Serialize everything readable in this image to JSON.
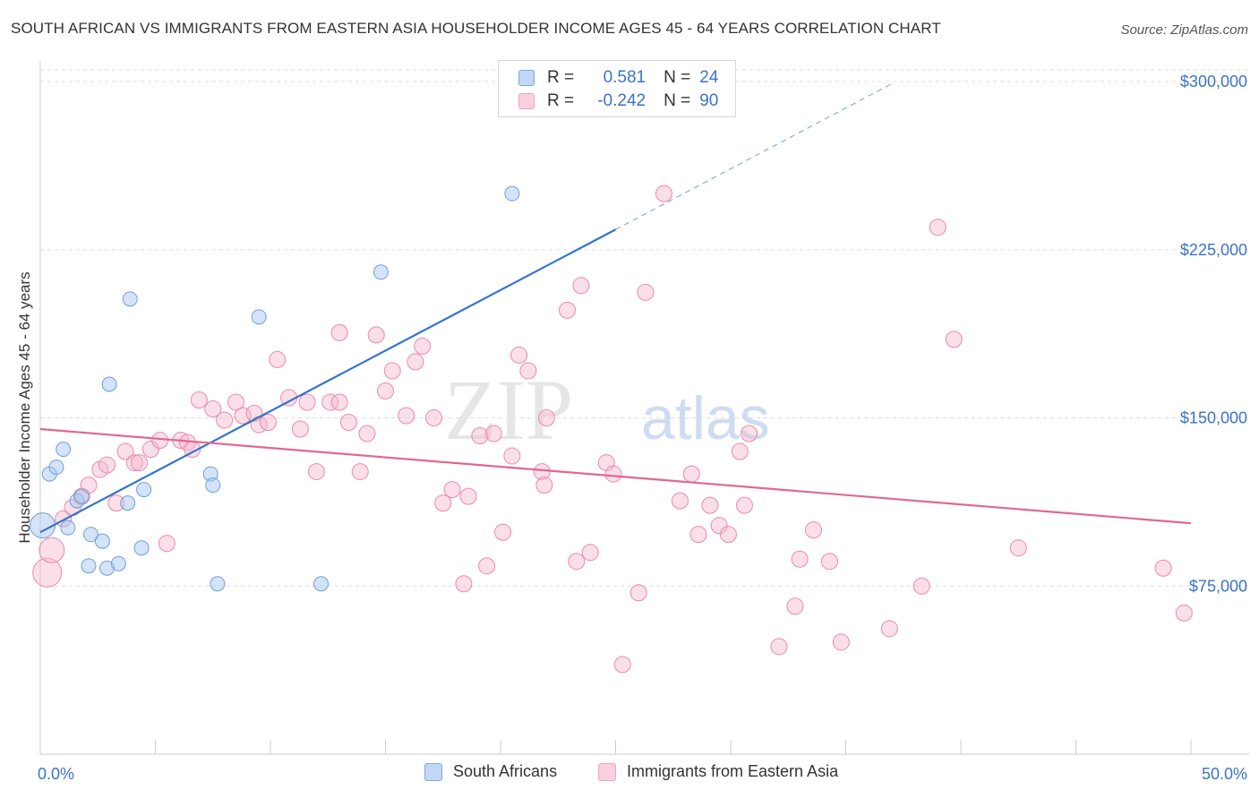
{
  "header": {
    "title": "SOUTH AFRICAN VS IMMIGRANTS FROM EASTERN ASIA HOUSEHOLDER INCOME AGES 45 - 64 YEARS CORRELATION CHART",
    "source": "Source: ZipAtlas.com"
  },
  "legend_top": {
    "rows": [
      {
        "r_label": "R =",
        "r_value": "0.581",
        "n_label": "N =",
        "n_value": "24"
      },
      {
        "r_label": "R =",
        "r_value": "-0.242",
        "n_label": "N =",
        "n_value": "90"
      }
    ]
  },
  "legend_bottom": {
    "items": [
      {
        "label": "South Africans"
      },
      {
        "label": "Immigrants from Eastern Asia"
      }
    ]
  },
  "colors": {
    "blue_fill": "#aac8f0",
    "blue_stroke": "#6f9fdc",
    "blue_line": "#3374d0",
    "pink_fill": "#f6b8cc",
    "pink_stroke": "#e98aa9",
    "pink_line": "#e0688f",
    "axis_text": "#3a74c4",
    "grid": "#dddddd"
  },
  "watermark": {
    "part1": "ZIP",
    "part2": "atlas"
  },
  "chart_data": {
    "type": "scatter",
    "title": "SOUTH AFRICAN VS IMMIGRANTS FROM EASTERN ASIA HOUSEHOLDER INCOME AGES 45 - 64 YEARS CORRELATION CHART",
    "xlabel": "",
    "ylabel": "Householder Income Ages 45 - 64 years",
    "xlim": [
      0,
      50
    ],
    "ylim": [
      0,
      315000
    ],
    "x_tick_labels": [
      "0.0%",
      "50.0%"
    ],
    "y_ticks": [
      75000,
      150000,
      225000,
      300000
    ],
    "y_tick_labels": [
      "$75,000",
      "$150,000",
      "$225,000",
      "$300,000"
    ],
    "grid": true,
    "legend_position": "bottom",
    "series": [
      {
        "name": "South Africans",
        "r": 0.581,
        "n": 24,
        "trend": {
          "x0": 0,
          "y0": 99000,
          "x1": 25,
          "y1": 234000,
          "dashed_to_x": 37,
          "dashed_to_y": 299000
        },
        "points": [
          [
            0.1,
            102000,
            14
          ],
          [
            0.4,
            125000,
            8
          ],
          [
            0.7,
            128000,
            8
          ],
          [
            1.0,
            136000,
            8
          ],
          [
            1.2,
            101000,
            8
          ],
          [
            1.6,
            113000,
            8
          ],
          [
            1.8,
            115000,
            8
          ],
          [
            2.1,
            84000,
            8
          ],
          [
            2.2,
            98000,
            8
          ],
          [
            2.7,
            95000,
            8
          ],
          [
            2.9,
            83000,
            8
          ],
          [
            3.0,
            165000,
            8
          ],
          [
            3.4,
            85000,
            8
          ],
          [
            3.8,
            112000,
            8
          ],
          [
            3.9,
            203000,
            8
          ],
          [
            4.4,
            92000,
            8
          ],
          [
            4.5,
            118000,
            8
          ],
          [
            7.4,
            125000,
            8
          ],
          [
            7.5,
            120000,
            8
          ],
          [
            7.7,
            76000,
            8
          ],
          [
            9.5,
            195000,
            8
          ],
          [
            12.2,
            76000,
            8
          ],
          [
            14.8,
            215000,
            8
          ],
          [
            20.5,
            250000,
            8
          ]
        ]
      },
      {
        "name": "Immigrants from Eastern Asia",
        "r": -0.242,
        "n": 90,
        "trend": {
          "x0": 0,
          "y0": 145000,
          "x1": 50,
          "y1": 103000
        },
        "points": [
          [
            0.3,
            81000,
            16
          ],
          [
            0.5,
            91000,
            14
          ],
          [
            1.0,
            105000,
            9
          ],
          [
            1.4,
            110000,
            9
          ],
          [
            1.8,
            115000,
            9
          ],
          [
            2.1,
            120000,
            9
          ],
          [
            2.6,
            127000,
            9
          ],
          [
            2.9,
            129000,
            9
          ],
          [
            3.3,
            112000,
            9
          ],
          [
            3.7,
            135000,
            9
          ],
          [
            4.1,
            130000,
            9
          ],
          [
            4.3,
            130000,
            9
          ],
          [
            4.8,
            136000,
            9
          ],
          [
            5.2,
            140000,
            9
          ],
          [
            5.5,
            94000,
            9
          ],
          [
            6.1,
            140000,
            9
          ],
          [
            6.4,
            139000,
            9
          ],
          [
            6.6,
            136000,
            9
          ],
          [
            6.9,
            158000,
            9
          ],
          [
            7.5,
            154000,
            9
          ],
          [
            8.0,
            149000,
            9
          ],
          [
            8.5,
            157000,
            9
          ],
          [
            8.8,
            151000,
            9
          ],
          [
            9.3,
            152000,
            9
          ],
          [
            9.5,
            147000,
            9
          ],
          [
            9.9,
            148000,
            9
          ],
          [
            10.3,
            176000,
            9
          ],
          [
            10.8,
            159000,
            9
          ],
          [
            11.3,
            145000,
            9
          ],
          [
            11.6,
            157000,
            9
          ],
          [
            12.0,
            126000,
            9
          ],
          [
            12.6,
            157000,
            9
          ],
          [
            13.0,
            157000,
            9
          ],
          [
            13.0,
            188000,
            9
          ],
          [
            13.4,
            148000,
            9
          ],
          [
            13.9,
            126000,
            9
          ],
          [
            14.2,
            143000,
            9
          ],
          [
            14.6,
            187000,
            9
          ],
          [
            15.0,
            162000,
            9
          ],
          [
            15.3,
            171000,
            9
          ],
          [
            15.9,
            151000,
            9
          ],
          [
            16.3,
            175000,
            9
          ],
          [
            16.6,
            182000,
            9
          ],
          [
            17.1,
            150000,
            9
          ],
          [
            17.5,
            112000,
            9
          ],
          [
            17.9,
            118000,
            9
          ],
          [
            18.4,
            76000,
            9
          ],
          [
            18.6,
            115000,
            9
          ],
          [
            19.1,
            142000,
            9
          ],
          [
            19.4,
            84000,
            9
          ],
          [
            19.7,
            143000,
            9
          ],
          [
            20.1,
            99000,
            9
          ],
          [
            20.5,
            133000,
            9
          ],
          [
            20.8,
            178000,
            9
          ],
          [
            21.2,
            171000,
            9
          ],
          [
            21.8,
            126000,
            9
          ],
          [
            21.9,
            120000,
            9
          ],
          [
            22.0,
            150000,
            9
          ],
          [
            22.9,
            198000,
            9
          ],
          [
            23.3,
            86000,
            9
          ],
          [
            23.5,
            209000,
            9
          ],
          [
            23.9,
            90000,
            9
          ],
          [
            24.6,
            130000,
            9
          ],
          [
            24.9,
            125000,
            9
          ],
          [
            25.3,
            40000,
            9
          ],
          [
            26.0,
            72000,
            9
          ],
          [
            26.3,
            206000,
            9
          ],
          [
            27.1,
            250000,
            9
          ],
          [
            27.8,
            113000,
            9
          ],
          [
            28.3,
            125000,
            9
          ],
          [
            28.6,
            98000,
            9
          ],
          [
            29.1,
            111000,
            9
          ],
          [
            29.5,
            102000,
            9
          ],
          [
            29.9,
            98000,
            9
          ],
          [
            30.4,
            135000,
            9
          ],
          [
            30.6,
            111000,
            9
          ],
          [
            30.8,
            143000,
            9
          ],
          [
            32.1,
            48000,
            9
          ],
          [
            32.8,
            66000,
            9
          ],
          [
            33.0,
            87000,
            9
          ],
          [
            33.6,
            100000,
            9
          ],
          [
            34.3,
            86000,
            9
          ],
          [
            34.8,
            50000,
            9
          ],
          [
            36.9,
            56000,
            9
          ],
          [
            38.3,
            75000,
            9
          ],
          [
            39.0,
            235000,
            9
          ],
          [
            39.7,
            185000,
            9
          ],
          [
            42.5,
            92000,
            9
          ],
          [
            48.8,
            83000,
            9
          ],
          [
            49.7,
            63000,
            9
          ]
        ]
      }
    ]
  }
}
